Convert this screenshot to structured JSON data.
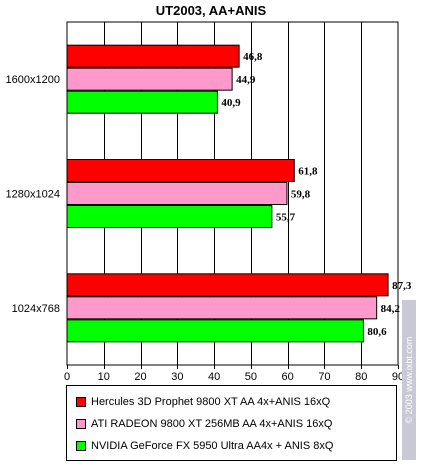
{
  "chart_data": {
    "type": "bar",
    "orientation": "horizontal",
    "title": "UT2003, AA+ANIS",
    "categories": [
      "1600x1200",
      "1280x1024",
      "1024x768"
    ],
    "series": [
      {
        "name": "Hercules 3D Prophet 9800 XT AA 4x+ANIS 16xQ",
        "color": "#ff0000",
        "values": [
          46.8,
          61.8,
          87.3
        ],
        "labels": [
          "46,8",
          "61,8",
          "87,3"
        ]
      },
      {
        "name": "ATI RADEON 9800 XT 256MB AA 4x+ANIS 16xQ",
        "color": "#ff99cc",
        "values": [
          44.9,
          59.8,
          84.2
        ],
        "labels": [
          "44,9",
          "59,8",
          "84,2"
        ]
      },
      {
        "name": "NVIDIA GeForce FX 5950 Ultra AA4x + ANIS 8xQ",
        "color": "#00ff00",
        "values": [
          40.9,
          55.7,
          80.6
        ],
        "labels": [
          "40,9",
          "55,7",
          "80,6"
        ]
      }
    ],
    "xlim": [
      0,
      90
    ],
    "xticks": [
      "0",
      "10",
      "20",
      "30",
      "40",
      "50",
      "60",
      "70",
      "80",
      "90"
    ],
    "grid": true,
    "legend_position": "bottom"
  },
  "watermark": {
    "text": "© 2003 www.ixbt.com"
  }
}
